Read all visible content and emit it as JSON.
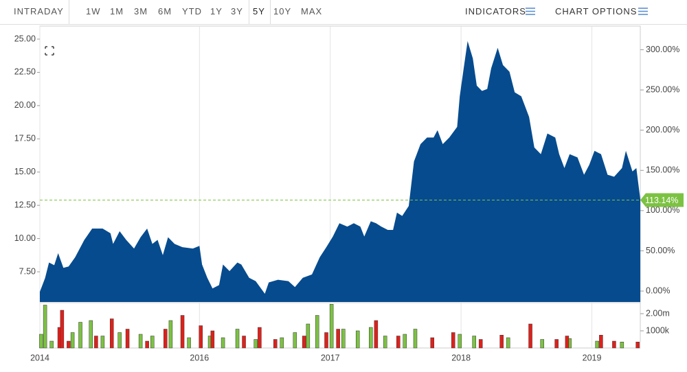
{
  "toolbar": {
    "intraday": "INTRADAY",
    "ranges": [
      "1W",
      "1M",
      "3M",
      "6M",
      "YTD",
      "1Y",
      "3Y",
      "5Y",
      "10Y",
      "MAX"
    ],
    "active": "5Y",
    "indicators": "INDICATORS",
    "chart_options": "CHART OPTIONS"
  },
  "chart_data": [
    {
      "type": "area",
      "color": "#064b8e",
      "x": [
        2014.78,
        2014.82,
        2014.85,
        2014.89,
        2014.92,
        2014.96,
        2015.0,
        2015.05,
        2015.12,
        2015.18,
        2015.26,
        2015.32,
        2015.34,
        2015.39,
        2015.44,
        2015.5,
        2015.55,
        2015.6,
        2015.64,
        2015.68,
        2015.72,
        2015.76,
        2015.81,
        2015.87,
        2015.95,
        2016.0,
        2016.02,
        2016.06,
        2016.1,
        2016.15,
        2016.18,
        2016.23,
        2016.29,
        2016.32,
        2016.38,
        2016.43,
        2016.5,
        2016.53,
        2016.6,
        2016.68,
        2016.73,
        2016.79,
        2016.86,
        2016.92,
        2016.97,
        2017.02,
        2017.07,
        2017.13,
        2017.18,
        2017.23,
        2017.26,
        2017.31,
        2017.35,
        2017.39,
        2017.44,
        2017.48,
        2017.51,
        2017.55,
        2017.6,
        2017.64,
        2017.69,
        2017.74,
        2017.79,
        2017.82,
        2017.86,
        2017.91,
        2017.97,
        2017.99,
        2018.02,
        2018.05,
        2018.09,
        2018.12,
        2018.16,
        2018.2,
        2018.23,
        2018.28,
        2018.32,
        2018.37,
        2018.41,
        2018.46,
        2018.52,
        2018.56,
        2018.61,
        2018.66,
        2018.72,
        2018.75,
        2018.79,
        2018.83,
        2018.89,
        2018.94,
        2018.98,
        2019.02,
        2019.07,
        2019.12,
        2019.17,
        2019.23,
        2019.26,
        2019.31,
        2019.34,
        2019.37
      ],
      "values": [
        6.0,
        7.03,
        8.2,
        8.0,
        8.9,
        7.8,
        7.9,
        8.6,
        9.9,
        10.75,
        10.75,
        10.4,
        9.6,
        10.55,
        9.9,
        9.25,
        10.1,
        10.75,
        9.6,
        9.9,
        8.75,
        10.1,
        9.6,
        9.35,
        9.25,
        9.45,
        8.05,
        7.05,
        6.25,
        6.5,
        8.05,
        7.55,
        8.2,
        8.05,
        7.05,
        6.8,
        5.85,
        6.7,
        6.9,
        6.8,
        6.35,
        7.05,
        7.3,
        8.6,
        9.35,
        10.15,
        11.15,
        10.9,
        11.15,
        10.9,
        10.15,
        11.3,
        11.15,
        10.9,
        10.65,
        10.65,
        11.95,
        11.7,
        12.45,
        15.8,
        17.1,
        17.6,
        17.6,
        18.15,
        17.1,
        17.6,
        18.4,
        20.7,
        22.8,
        24.85,
        23.55,
        21.5,
        21.1,
        21.25,
        22.8,
        24.35,
        23.05,
        22.55,
        21.0,
        20.7,
        19.15,
        16.85,
        16.35,
        17.9,
        17.6,
        16.35,
        15.3,
        16.35,
        16.1,
        14.8,
        15.55,
        16.6,
        16.35,
        14.8,
        14.65,
        15.3,
        16.6,
        15.05,
        15.3,
        12.95
      ],
      "xlim": [
        2014.78,
        2019.37
      ],
      "ylim": [
        5.23,
        25.98
      ],
      "yticks": [
        {
          "value": 7.5,
          "label": "7.50"
        },
        {
          "value": 10,
          "label": "10.00"
        },
        {
          "value": 12.5,
          "label": "12.50"
        },
        {
          "value": 15,
          "label": "15.00"
        },
        {
          "value": 17.5,
          "label": "17.50"
        },
        {
          "value": 20,
          "label": "20.00"
        },
        {
          "value": 22.5,
          "label": "22.50"
        },
        {
          "value": 25,
          "label": "25.00"
        }
      ],
      "y2lim": [
        -13.6,
        329.4
      ],
      "y2ticks": [
        {
          "value": 0,
          "label": "0.00%"
        },
        {
          "value": 50,
          "label": "50.00%"
        },
        {
          "value": 100,
          "label": "100.00%"
        },
        {
          "value": 150,
          "label": "150.00%"
        },
        {
          "value": 200,
          "label": "200.00%"
        },
        {
          "value": 250,
          "label": "250.00%"
        },
        {
          "value": 300,
          "label": "300.00%"
        }
      ],
      "reference": {
        "value": 113.14,
        "label": "113.14%",
        "axis": "y2",
        "color": "#7cc242"
      },
      "grid": true
    },
    {
      "type": "bar",
      "xlim": [
        2014.78,
        2019.37
      ],
      "ylim": [
        0,
        2600000
      ],
      "yticks": [
        {
          "value": 1000000,
          "label": "1000k"
        },
        {
          "value": 2000000,
          "label": "2.00m"
        }
      ],
      "xticks": [
        {
          "value": 2014.78,
          "label": "2014"
        },
        2016,
        2017,
        2018,
        2019
      ],
      "series": [
        {
          "color": "#7cc242",
          "x": [
            2014.79,
            2014.82,
            2014.87,
            2015.03,
            2015.09,
            2015.17,
            2015.26,
            2015.39,
            2015.55,
            2015.64,
            2015.78,
            2015.92,
            2016.08,
            2016.18,
            2016.29,
            2016.43,
            2016.63,
            2016.73,
            2016.83,
            2016.9,
            2017.01,
            2017.1,
            2017.21,
            2017.31,
            2017.42,
            2017.57,
            2017.65,
            2017.99,
            2018.1,
            2018.36,
            2018.62,
            2018.83,
            2019.04,
            2019.23
          ],
          "values": [
            800000,
            2500000,
            400000,
            900000,
            1500000,
            1600000,
            700000,
            900000,
            800000,
            700000,
            1600000,
            600000,
            700000,
            600000,
            1100000,
            500000,
            600000,
            900000,
            1400000,
            1900000,
            2550000,
            1100000,
            1000000,
            1200000,
            700000,
            800000,
            1100000,
            800000,
            700000,
            600000,
            500000,
            550000,
            400000,
            350000
          ]
        },
        {
          "color": "#e0201b",
          "x": [
            2014.93,
            2014.95,
            2015.0,
            2015.21,
            2015.33,
            2015.45,
            2015.6,
            2015.74,
            2015.87,
            2016.01,
            2016.1,
            2016.34,
            2016.46,
            2016.58,
            2016.8,
            2016.97,
            2017.06,
            2017.35,
            2017.52,
            2017.78,
            2017.94,
            2018.15,
            2018.31,
            2018.53,
            2018.73,
            2018.81,
            2019.07,
            2019.17,
            2019.35
          ],
          "values": [
            1200000,
            2200000,
            400000,
            700000,
            1700000,
            1100000,
            400000,
            1100000,
            1900000,
            1300000,
            1000000,
            700000,
            1200000,
            500000,
            700000,
            900000,
            1100000,
            1600000,
            700000,
            600000,
            900000,
            500000,
            750000,
            1400000,
            500000,
            700000,
            750000,
            400000,
            350000
          ]
        }
      ]
    }
  ]
}
